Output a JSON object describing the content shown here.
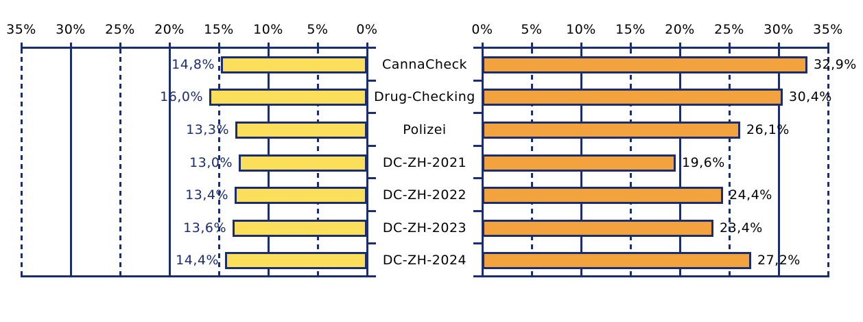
{
  "colors": {
    "navy": "#1B2C6F",
    "yellow": "#FBDE59",
    "orange": "#F2A33E",
    "tick_text": "#000000",
    "background": "#FFFFFF"
  },
  "chart_data": {
    "type": "bar",
    "variant": "butterfly-tornado",
    "orientation": "horizontal",
    "title": "",
    "legend": false,
    "grid": true,
    "categories": [
      "CannaCheck",
      "Drug-Checking",
      "Polizei",
      "DC-ZH-2021",
      "DC-ZH-2022",
      "DC-ZH-2023",
      "DC-ZH-2024"
    ],
    "series": [
      {
        "name": "left-yellow",
        "direction": "left",
        "bar_color": "#FBDE59",
        "label_color": "#1B2C6F",
        "values": [
          14.8,
          16.0,
          13.3,
          13.0,
          13.4,
          13.6,
          14.4
        ],
        "labels": [
          "14,8%",
          "16,0%",
          "13,3%",
          "13,0%",
          "13,4%",
          "13,6%",
          "14,4%"
        ]
      },
      {
        "name": "right-orange",
        "direction": "right",
        "bar_color": "#F2A33E",
        "label_color": "#000000",
        "values": [
          32.9,
          30.4,
          26.1,
          19.6,
          24.4,
          23.4,
          27.2
        ],
        "labels": [
          "32,9%",
          "30,4%",
          "26,1%",
          "19,6%",
          "24,4%",
          "23,4%",
          "27,2%"
        ]
      }
    ],
    "axis": {
      "min": 0,
      "max": 35,
      "step": 5,
      "left_tick_labels": [
        "35%",
        "30%",
        "25%",
        "20%",
        "15%",
        "10%",
        "5%",
        "0%"
      ],
      "right_tick_labels": [
        "0%",
        "5%",
        "10%",
        "15%",
        "20%",
        "25%",
        "30%",
        "35%"
      ],
      "solid_gridlines_at": [
        10,
        20,
        30
      ],
      "dashed_gridlines_at": [
        5,
        15,
        25,
        35
      ]
    }
  }
}
